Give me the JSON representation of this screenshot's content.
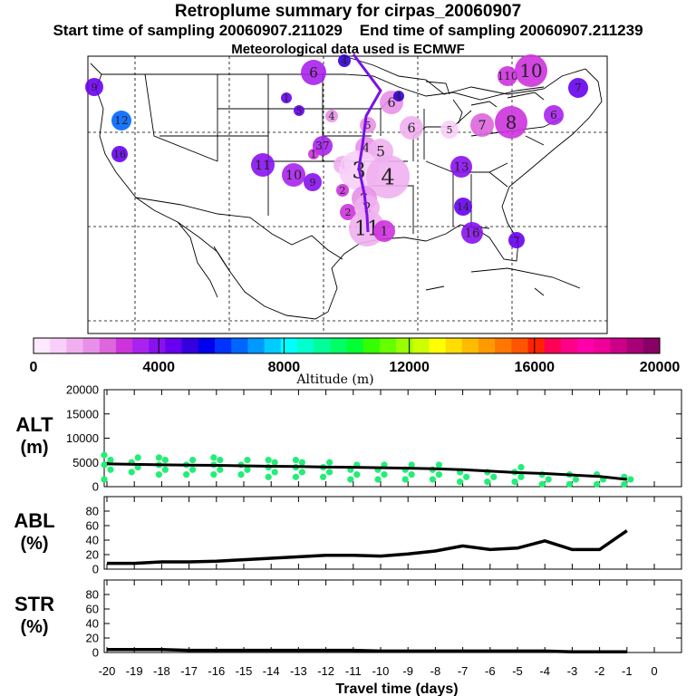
{
  "title": "Retroplume summary for cirpas_20060907",
  "subtitle_start": "Start time of sampling 20060907.211029",
  "subtitle_end": "End time of sampling 20060907.211239",
  "met_line": "Meteorological data used is ECMWF",
  "colorbar": {
    "label": "Altitude (m)",
    "ticks": [
      "0",
      "4000",
      "8000",
      "12000",
      "16000",
      "20000"
    ],
    "colors": [
      "#fde8fd",
      "#f8cff8",
      "#f0b0f0",
      "#e890e8",
      "#dd66dd",
      "#cc33dd",
      "#aa22ee",
      "#8811ee",
      "#6600ee",
      "#3300dd",
      "#0000ee",
      "#0033ff",
      "#0066ff",
      "#0099ff",
      "#00ccff",
      "#00ffff",
      "#00ffcc",
      "#00ff99",
      "#00ff66",
      "#00ff33",
      "#33ff00",
      "#66ff00",
      "#99ff00",
      "#ccff00",
      "#ffff00",
      "#ffdd00",
      "#ffbb00",
      "#ff9900",
      "#ff7700",
      "#ff5500",
      "#ff2200",
      "#ff0055",
      "#ff0088",
      "#ff00aa",
      "#ee0099",
      "#cc0088",
      "#aa0077",
      "#880066"
    ]
  },
  "map": {
    "labels": [
      {
        "t": "9",
        "x": 104,
        "y": 96,
        "r": 10,
        "c": "#6a00ee"
      },
      {
        "t": "6",
        "x": 346,
        "y": 80,
        "r": 14,
        "c": "#aa22ee"
      },
      {
        "t": "4",
        "x": 380,
        "y": 67,
        "r": 7,
        "c": "#3300dd"
      },
      {
        "t": "1",
        "x": 316,
        "y": 108,
        "r": 6,
        "c": "#6600ee"
      },
      {
        "t": "5",
        "x": 330,
        "y": 122,
        "r": 6,
        "c": "#6600ee"
      },
      {
        "t": "4",
        "x": 366,
        "y": 128,
        "r": 7,
        "c": "#e890e8"
      },
      {
        "t": "12",
        "x": 134,
        "y": 133,
        "r": 11,
        "c": "#0066ff"
      },
      {
        "t": "16",
        "x": 132,
        "y": 170,
        "r": 9,
        "c": "#6600ee"
      },
      {
        "t": "6",
        "x": 432,
        "y": 113,
        "r": 13,
        "c": "#e890e8"
      },
      {
        "t": "4",
        "x": 440,
        "y": 106,
        "r": 6,
        "c": "#3300dd"
      },
      {
        "t": "5",
        "x": 406,
        "y": 138,
        "r": 9,
        "c": "#e890e8"
      },
      {
        "t": "6",
        "x": 454,
        "y": 141,
        "r": 13,
        "c": "#f0b0f0"
      },
      {
        "t": "5",
        "x": 496,
        "y": 143,
        "r": 10,
        "c": "#f8cff8"
      },
      {
        "t": "7",
        "x": 532,
        "y": 138,
        "r": 13,
        "c": "#dd66dd"
      },
      {
        "t": "8",
        "x": 564,
        "y": 135,
        "r": 18,
        "c": "#cc33dd"
      },
      {
        "t": "6",
        "x": 611,
        "y": 127,
        "r": 11,
        "c": "#aa22ee"
      },
      {
        "t": "110",
        "x": 560,
        "y": 84,
        "r": 11,
        "c": "#cc33dd"
      },
      {
        "t": "10",
        "x": 586,
        "y": 78,
        "r": 18,
        "c": "#cc33dd"
      },
      {
        "t": "7",
        "x": 638,
        "y": 97,
        "r": 11,
        "c": "#6600ee"
      },
      {
        "t": "37",
        "x": 356,
        "y": 161,
        "r": 11,
        "c": "#aa22ee"
      },
      {
        "t": "1",
        "x": 346,
        "y": 170,
        "r": 6,
        "c": "#cc33dd"
      },
      {
        "t": "4",
        "x": 404,
        "y": 163,
        "r": 12,
        "c": "#e890e8"
      },
      {
        "t": "5",
        "x": 420,
        "y": 167,
        "r": 14,
        "c": "#f0b0f0"
      },
      {
        "t": "11",
        "x": 290,
        "y": 182,
        "r": 13,
        "c": "#8811ee"
      },
      {
        "t": "10",
        "x": 324,
        "y": 193,
        "r": 13,
        "c": "#aa22ee"
      },
      {
        "t": "9",
        "x": 345,
        "y": 201,
        "r": 10,
        "c": "#8811ee"
      },
      {
        "t": "4",
        "x": 378,
        "y": 182,
        "r": 10,
        "c": "#f0b0f0"
      },
      {
        "t": "3",
        "x": 396,
        "y": 188,
        "r": 22,
        "c": "#f8cff8"
      },
      {
        "t": "4",
        "x": 428,
        "y": 195,
        "r": 24,
        "c": "#f0b0f0"
      },
      {
        "t": "13",
        "x": 509,
        "y": 184,
        "r": 12,
        "c": "#8811ee"
      },
      {
        "t": "2",
        "x": 378,
        "y": 210,
        "r": 7,
        "c": "#cc33dd"
      },
      {
        "t": "2",
        "x": 402,
        "y": 219,
        "r": 14,
        "c": "#e890e8"
      },
      {
        "t": "2",
        "x": 384,
        "y": 234,
        "r": 9,
        "c": "#cc33dd"
      },
      {
        "t": "2",
        "x": 405,
        "y": 229,
        "r": 14,
        "c": "#f0b0f0"
      },
      {
        "t": "14",
        "x": 511,
        "y": 228,
        "r": 10,
        "c": "#6600ee"
      },
      {
        "t": "11",
        "x": 405,
        "y": 252,
        "r": 20,
        "c": "#f0b0f0"
      },
      {
        "t": "1",
        "x": 424,
        "y": 255,
        "r": 12,
        "c": "#cc33dd"
      },
      {
        "t": "16",
        "x": 521,
        "y": 257,
        "r": 12,
        "c": "#8811ee"
      },
      {
        "t": "7",
        "x": 570,
        "y": 265,
        "r": 9,
        "c": "#6600ee"
      }
    ]
  },
  "chart_data": [
    {
      "type": "scatter",
      "panel": "ALT",
      "ylabel": "ALT",
      "yunit": "(m)",
      "xlabel": "Travel time (days)",
      "ylim": [
        0,
        20000
      ],
      "yticks": [
        "20000",
        "15000",
        "10000",
        "5000",
        "0"
      ],
      "xticks": [
        "-20",
        "-19",
        "-18",
        "-17",
        "-16",
        "-15",
        "-14",
        "-13",
        "-12",
        "-11",
        "-10",
        "-9",
        "-8",
        "-7",
        "-6",
        "-5",
        "-4",
        "-3",
        "-2",
        "-1",
        "0"
      ],
      "mean_line": {
        "x": [
          -20,
          -19,
          -18,
          -17,
          -16,
          -15,
          -14,
          -13,
          -12,
          -11,
          -10,
          -9,
          -8,
          -7,
          -6,
          -5,
          -4,
          -3,
          -2,
          -1
        ],
        "y": [
          4700,
          4600,
          4500,
          4450,
          4400,
          4300,
          4200,
          4150,
          4050,
          4000,
          3900,
          3800,
          3700,
          3500,
          3200,
          2900,
          2700,
          2400,
          2100,
          1500
        ]
      },
      "point_groups": [
        {
          "x": -20,
          "y": [
            1500,
            3500,
            4500,
            5500,
            6500
          ]
        },
        {
          "x": -19,
          "y": [
            3000,
            4000,
            5000,
            6000
          ]
        },
        {
          "x": -18,
          "y": [
            2500,
            3500,
            4500,
            5500,
            6000
          ]
        },
        {
          "x": -17,
          "y": [
            2500,
            3500,
            4500,
            5500
          ]
        },
        {
          "x": -16,
          "y": [
            2500,
            3500,
            4500,
            5500,
            6000
          ]
        },
        {
          "x": -15,
          "y": [
            2500,
            3500,
            4500,
            5500
          ]
        },
        {
          "x": -14,
          "y": [
            2000,
            3000,
            4000,
            5000,
            5500
          ]
        },
        {
          "x": -13,
          "y": [
            2000,
            3000,
            4000,
            5000,
            5500
          ]
        },
        {
          "x": -12,
          "y": [
            2000,
            3000,
            4000,
            5000
          ]
        },
        {
          "x": -11,
          "y": [
            1500,
            2500,
            3500,
            4500
          ]
        },
        {
          "x": -10,
          "y": [
            1500,
            2500,
            3500,
            4500
          ]
        },
        {
          "x": -9,
          "y": [
            1500,
            2500,
            3500,
            4500
          ]
        },
        {
          "x": -8,
          "y": [
            1500,
            2500,
            3500,
            4500
          ]
        },
        {
          "x": -7,
          "y": [
            1000,
            2000,
            3000
          ]
        },
        {
          "x": -6,
          "y": [
            1000,
            2000,
            3000
          ]
        },
        {
          "x": -5,
          "y": [
            1000,
            2000,
            3000,
            4000
          ]
        },
        {
          "x": -4,
          "y": [
            500,
            1500,
            2500
          ]
        },
        {
          "x": -3,
          "y": [
            500,
            1500,
            2500
          ]
        },
        {
          "x": -2,
          "y": [
            500,
            1500,
            2500
          ]
        },
        {
          "x": -1,
          "y": [
            500,
            1500,
            2000
          ]
        }
      ]
    },
    {
      "type": "line",
      "panel": "ABL",
      "ylabel": "ABL",
      "yunit": "(%)",
      "ylim": [
        0,
        100
      ],
      "yticks": [
        "80",
        "60",
        "40",
        "20",
        "0"
      ],
      "x": [
        -20,
        -19,
        -18,
        -17,
        -16,
        -15,
        -14,
        -13,
        -12,
        -11,
        -10,
        -9,
        -8,
        -7,
        -6,
        -5,
        -4,
        -3,
        -2,
        -1
      ],
      "values": [
        8,
        8,
        10,
        10,
        11,
        13,
        15,
        17,
        19,
        19,
        18,
        21,
        25,
        32,
        27,
        29,
        39,
        27,
        27,
        53
      ]
    },
    {
      "type": "line",
      "panel": "STR",
      "ylabel": "STR",
      "yunit": "(%)",
      "ylim": [
        0,
        100
      ],
      "yticks": [
        "80",
        "60",
        "40",
        "20",
        "0"
      ],
      "x": [
        -20,
        -19,
        -18,
        -17,
        -16,
        -15,
        -14,
        -13,
        -12,
        -11,
        -10,
        -9,
        -8,
        -7,
        -6,
        -5,
        -4,
        -3,
        -2,
        -1
      ],
      "values": [
        4,
        4,
        4,
        3,
        3,
        3,
        3,
        3,
        3,
        3,
        2,
        2,
        2,
        2,
        2,
        2,
        2,
        1,
        1,
        1
      ]
    }
  ]
}
